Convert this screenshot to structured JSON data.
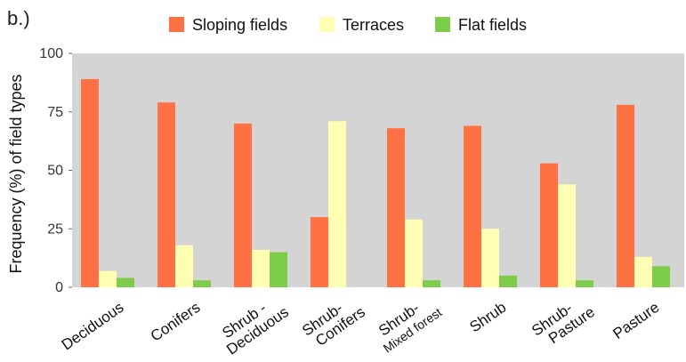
{
  "panel_label": "b.)",
  "chart_data": {
    "type": "bar",
    "ylabel": "Frequency (%) of field types",
    "xlabel": "",
    "ylim": [
      0,
      100
    ],
    "yticks": [
      0,
      25,
      50,
      75,
      100
    ],
    "grid": false,
    "legend_position": "top",
    "plot_background": "#d4d4d4",
    "categories": [
      {
        "lines": [
          "Deciduous"
        ]
      },
      {
        "lines": [
          "Conifers"
        ]
      },
      {
        "lines": [
          "Shrub -",
          "Deciduous"
        ]
      },
      {
        "lines": [
          "Shrub-",
          "Conifers"
        ]
      },
      {
        "lines": [
          "Shrub-",
          "Mixed forest"
        ]
      },
      {
        "lines": [
          "Shrub"
        ]
      },
      {
        "lines": [
          "Shrub-",
          "Pasture"
        ]
      },
      {
        "lines": [
          "Pasture"
        ]
      }
    ],
    "series": [
      {
        "name": "Sloping fields",
        "color": "#ff7043",
        "values": [
          89,
          79,
          70,
          30,
          68,
          69,
          53,
          78
        ]
      },
      {
        "name": "Terraces",
        "color": "#ffffb3",
        "values": [
          7,
          18,
          16,
          71,
          29,
          25,
          44,
          13
        ]
      },
      {
        "name": "Flat fields",
        "color": "#7dcc4a",
        "values": [
          4,
          3,
          15,
          0,
          3,
          5,
          3,
          9
        ]
      }
    ]
  }
}
